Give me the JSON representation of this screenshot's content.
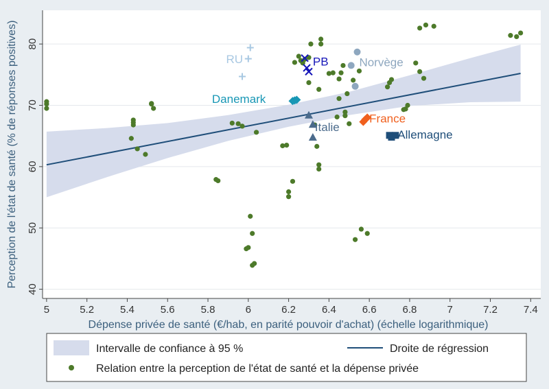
{
  "chart_data": {
    "type": "scatter",
    "xlabel": "Dépense privée de santé (€/hab, en parité pouvoir d'achat) (échelle logarithmique)",
    "ylabel": "Perception de l'état de santé (% de réponses positives)",
    "xlim": [
      4.98,
      7.45
    ],
    "ylim": [
      38.5,
      85.5
    ],
    "x_ticks": [
      "5",
      "5.2",
      "5.4",
      "5.6",
      "5.8",
      "6",
      "6.2",
      "6.4",
      "6.6",
      "6.8",
      "7",
      "7.2",
      "7.4"
    ],
    "y_ticks": [
      "40",
      "50",
      "60",
      "70",
      "80"
    ],
    "grid": "horizontal",
    "legend_position": "bottom",
    "colors": {
      "background": "#e9eef2",
      "plot_background": "#ffffff",
      "ci_band": "#d6dcec",
      "regression_line": "#1f4e79",
      "points": "#4d7a2a",
      "ru": "#a8c8e2",
      "pb": "#1515b8",
      "norvege": "#8ea7bf",
      "danemark": "#1897b5",
      "italie": "#4b6b8c",
      "france": "#f0601e",
      "allemagne": "#1f4e79"
    },
    "legend": [
      {
        "label": "Intervalle de confiance à 95 %"
      },
      {
        "label": "Droite de régression"
      },
      {
        "label": "Relation entre la perception de l'état de santé et la dépense privée"
      }
    ],
    "regression": {
      "x": [
        5.0,
        7.35
      ],
      "y": [
        60.3,
        75.2
      ]
    },
    "confidence_band": {
      "x": [
        5.0,
        5.3,
        5.6,
        5.9,
        6.2,
        6.5,
        6.8,
        7.1,
        7.35
      ],
      "lower": [
        55.0,
        58.3,
        61.4,
        64.2,
        66.5,
        68.4,
        69.9,
        70.5,
        70.6
      ],
      "upper": [
        65.7,
        66.3,
        67.1,
        68.4,
        70.1,
        72.2,
        74.9,
        77.7,
        79.9
      ]
    },
    "series": [
      {
        "marker": "dot",
        "color_key": "points",
        "x": [
          5.0,
          5.0,
          5.0,
          5.42,
          5.43,
          5.43,
          5.43,
          5.45,
          5.49,
          5.52,
          5.52,
          5.53,
          5.84,
          5.85,
          5.92,
          5.95,
          5.97,
          5.99,
          6.0,
          6.01,
          6.02,
          6.02,
          6.03,
          6.04,
          6.17,
          6.19,
          6.2,
          6.2,
          6.22,
          6.23,
          6.25,
          6.26,
          6.27,
          6.28,
          6.3,
          6.3,
          6.31,
          6.33,
          6.34,
          6.35,
          6.35,
          6.35,
          6.36,
          6.36,
          6.4,
          6.42,
          6.44,
          6.45,
          6.45,
          6.46,
          6.47,
          6.48,
          6.48,
          6.49,
          6.5,
          6.52,
          6.53,
          6.55,
          6.56,
          6.59,
          6.69,
          6.7,
          6.71,
          6.77,
          6.78,
          6.79,
          6.83,
          6.85,
          6.85,
          6.87,
          6.88,
          6.92,
          7.3,
          7.33,
          7.35
        ],
        "y": [
          70.6,
          70.2,
          69.5,
          64.6,
          67.6,
          67.2,
          66.8,
          62.9,
          62.0,
          70.3,
          70.2,
          69.5,
          57.9,
          57.7,
          67.1,
          67.0,
          66.6,
          46.6,
          46.8,
          51.9,
          49.1,
          43.9,
          44.2,
          65.6,
          63.4,
          63.5,
          55.1,
          55.9,
          57.6,
          77.0,
          78.0,
          77.3,
          76.9,
          77.5,
          77.8,
          73.7,
          80.0,
          66.8,
          63.3,
          72.6,
          60.3,
          59.6,
          80.0,
          80.8,
          75.2,
          75.3,
          68.1,
          74.3,
          71.1,
          75.3,
          76.5,
          68.3,
          68.9,
          71.9,
          67.0,
          74.1,
          48.1,
          75.6,
          49.8,
          49.1,
          73.0,
          73.7,
          74.2,
          69.3,
          69.4,
          70.0,
          76.9,
          82.6,
          75.5,
          74.4,
          83.1,
          82.9,
          81.4,
          81.2,
          81.8
        ]
      },
      {
        "name": "RU",
        "marker": "plus",
        "color_key": "ru",
        "x": [
          5.97,
          6.0,
          6.01
        ],
        "y": [
          74.7,
          77.6,
          79.4
        ]
      },
      {
        "name": "PB",
        "marker": "x",
        "color_key": "pb",
        "x": [
          6.28,
          6.29,
          6.3
        ],
        "y": [
          77.7,
          76.1,
          75.5
        ]
      },
      {
        "name": "Norvège",
        "marker": "circle",
        "color_key": "norvege",
        "x": [
          6.51,
          6.53,
          6.54
        ],
        "y": [
          76.5,
          73.1,
          78.7
        ]
      },
      {
        "name": "Danemark",
        "marker": "diamond",
        "color_key": "danemark",
        "x": [
          6.22,
          6.23,
          6.24
        ],
        "y": [
          70.7,
          70.8,
          70.9
        ]
      },
      {
        "name": "Italie",
        "marker": "triangle",
        "color_key": "italie",
        "x": [
          6.3,
          6.32,
          6.32
        ],
        "y": [
          68.4,
          66.9,
          64.8
        ]
      },
      {
        "name": "France",
        "marker": "diamond",
        "color_key": "france",
        "x": [
          6.57,
          6.58,
          6.59
        ],
        "y": [
          67.3,
          67.7,
          68.0
        ]
      },
      {
        "name": "Allemagne",
        "marker": "square",
        "color_key": "allemagne",
        "x": [
          6.7,
          6.71,
          6.73
        ],
        "y": [
          65.1,
          64.8,
          65.1
        ]
      }
    ],
    "annotations": [
      {
        "text": "RU",
        "x": 5.89,
        "y": 76.9,
        "color_key": "ru"
      },
      {
        "text": "PB",
        "x": 6.32,
        "y": 76.5,
        "color_key": "pb"
      },
      {
        "text": "Norvège",
        "x": 6.55,
        "y": 76.4,
        "color_key": "norvege"
      },
      {
        "text": "Danemark",
        "x": 5.82,
        "y": 70.4,
        "color_key": "danemark"
      },
      {
        "text": "Italie",
        "x": 6.33,
        "y": 65.8,
        "color_key": "italie"
      },
      {
        "text": "France",
        "x": 6.6,
        "y": 67.2,
        "color_key": "france"
      },
      {
        "text": "Allemagne",
        "x": 6.74,
        "y": 64.6,
        "color_key": "allemagne"
      }
    ]
  }
}
